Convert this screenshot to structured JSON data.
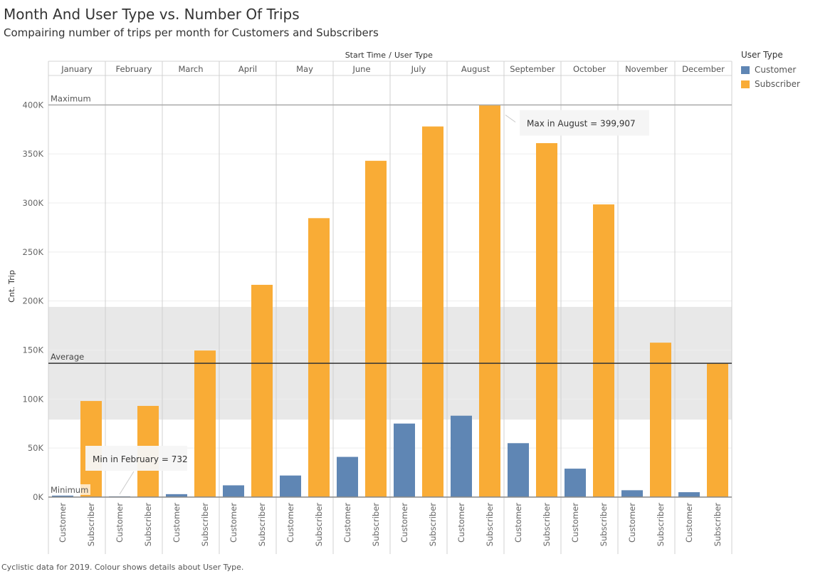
{
  "title": "Month And User Type vs. Number Of Trips",
  "subtitle": "Compairing number of trips per month for Customers and Subscribers",
  "footer": "Cyclistic data for 2019. Colour shows details about User Type.",
  "legend": {
    "title": "User Type",
    "items": [
      {
        "label": "Customer",
        "color": "#5f86b4"
      },
      {
        "label": "Subscriber",
        "color": "#f9ac36"
      }
    ]
  },
  "chart_data": {
    "type": "bar",
    "header_label": "Start Time",
    "header_sep": "/",
    "header_label2": "User Type",
    "ylabel": "Cnt. Trip",
    "ylim": [
      0,
      430000
    ],
    "yticks": [
      0,
      50000,
      100000,
      150000,
      200000,
      250000,
      300000,
      350000,
      400000
    ],
    "ytick_labels": [
      "0K",
      "50K",
      "100K",
      "150K",
      "200K",
      "250K",
      "300K",
      "350K",
      "400K"
    ],
    "categories": [
      "January",
      "February",
      "March",
      "April",
      "May",
      "June",
      "July",
      "August",
      "September",
      "October",
      "November",
      "December"
    ],
    "sub_categories": [
      "Customer",
      "Subscriber"
    ],
    "series": [
      {
        "name": "Customer",
        "color": "#5f86b4",
        "values": [
          1500,
          732,
          3000,
          12000,
          22000,
          41000,
          75000,
          83000,
          55000,
          29000,
          7000,
          5000
        ]
      },
      {
        "name": "Subscriber",
        "color": "#f9ac36",
        "values": [
          98000,
          93000,
          149500,
          216500,
          284500,
          343000,
          378000,
          399907,
          361000,
          298500,
          157500,
          136500
        ]
      }
    ],
    "reference_lines": {
      "maximum": {
        "label": "Maximum",
        "value": 399907
      },
      "average": {
        "label": "Average",
        "value": 136500
      },
      "minimum": {
        "label": "Minimum",
        "value": 0
      },
      "band": [
        79000,
        194000
      ]
    },
    "annotations": [
      {
        "text": "Max in August = 399,907",
        "month": "August",
        "series": "Subscriber"
      },
      {
        "text": "Min in February = 732",
        "month": "February",
        "series": "Customer"
      }
    ]
  }
}
